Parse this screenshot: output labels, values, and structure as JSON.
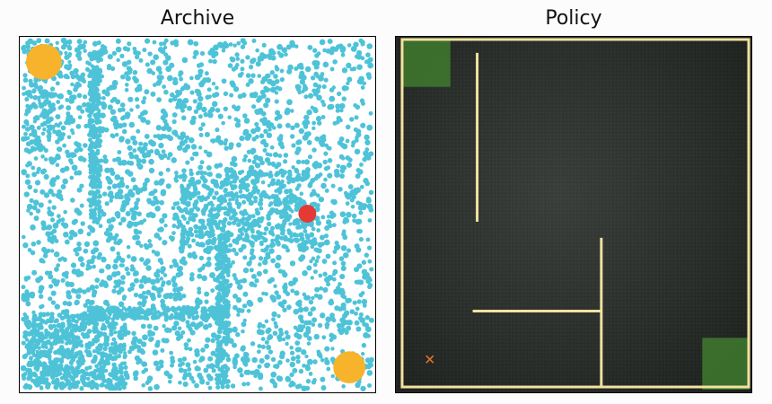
{
  "panels": {
    "archive": {
      "title": "Archive"
    },
    "policy": {
      "title": "Policy"
    }
  },
  "colors": {
    "archive_points": "#4ec3d8",
    "goal_marker": "#f7b32b",
    "current_marker": "#e53935",
    "maze_wall": "#f3e2a0",
    "goal_zone": "#3f7a2e",
    "agent_marker": "#e8742c",
    "policy_background": "#2c312e"
  },
  "icons": {
    "agent": "cross-mark"
  }
}
